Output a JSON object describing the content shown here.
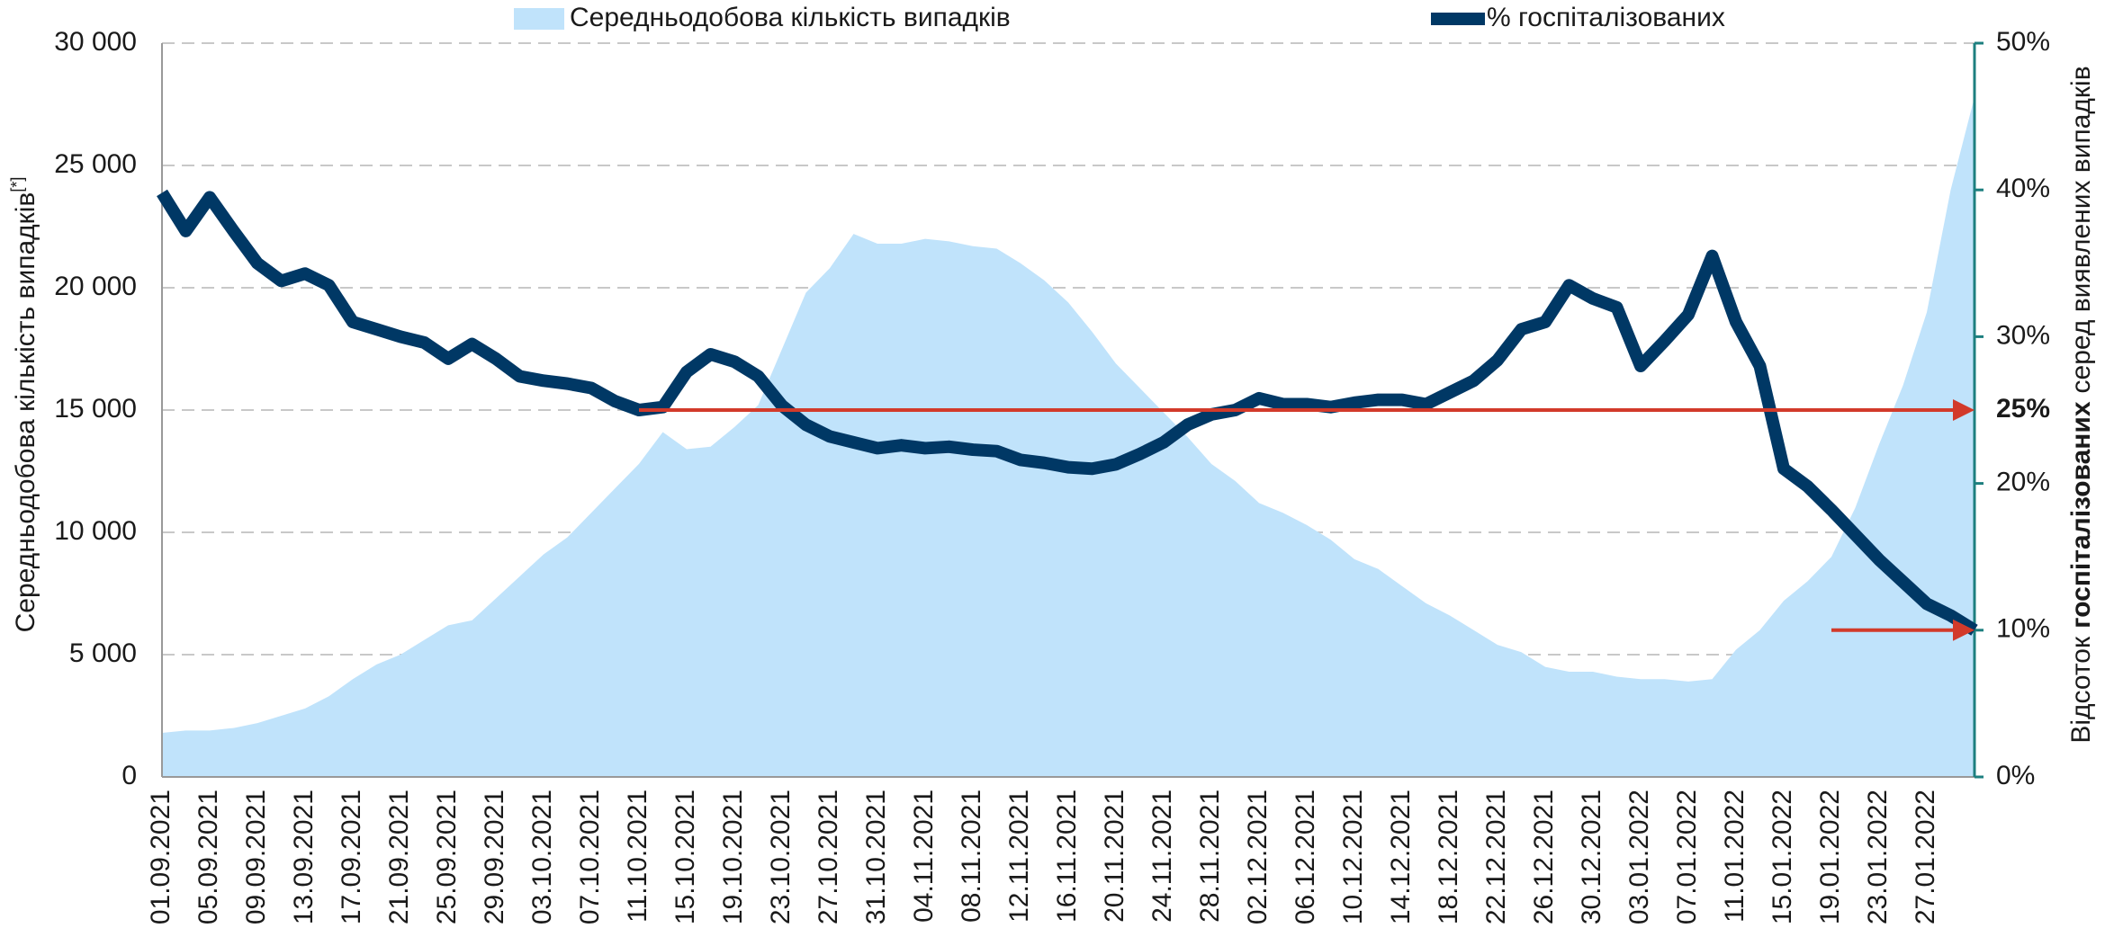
{
  "chart_data": {
    "type": "area_line",
    "categories": [
      "01.09.2021",
      null,
      "05.09.2021",
      null,
      "09.09.2021",
      null,
      "13.09.2021",
      null,
      "17.09.2021",
      null,
      "21.09.2021",
      null,
      "25.09.2021",
      null,
      "29.09.2021",
      null,
      "03.10.2021",
      null,
      "07.10.2021",
      null,
      "11.10.2021",
      null,
      "15.10.2021",
      null,
      "19.10.2021",
      null,
      "23.10.2021",
      null,
      "27.10.2021",
      null,
      "31.10.2021",
      null,
      "04.11.2021",
      null,
      "08.11.2021",
      null,
      "12.11.2021",
      null,
      "16.11.2021",
      null,
      "20.11.2021",
      null,
      "24.11.2021",
      null,
      "28.11.2021",
      null,
      "02.12.2021",
      null,
      "06.12.2021",
      null,
      "10.12.2021",
      null,
      "14.12.2021",
      null,
      "18.12.2021",
      null,
      "22.12.2021",
      null,
      "26.12.2021",
      null,
      "30.12.2021",
      null,
      "03.01.2022",
      null,
      "07.01.2022",
      null,
      "11.01.2022",
      null,
      "15.01.2022",
      null,
      "19.01.2022",
      null,
      "23.01.2022",
      null,
      "27.01.2022",
      null,
      null
    ],
    "series": [
      {
        "name": "Середньодобова кількість випадків",
        "kind": "area",
        "color": "#c0e3fb",
        "values": [
          1800,
          1900,
          1900,
          2000,
          2200,
          2500,
          2800,
          3300,
          4000,
          4600,
          5000,
          5600,
          6200,
          6400,
          7300,
          8200,
          9100,
          9800,
          10800,
          11800,
          12800,
          14100,
          13400,
          13500,
          14300,
          15200,
          17500,
          19800,
          20800,
          22200,
          21800,
          21800,
          22000,
          21900,
          21700,
          21600,
          21000,
          20300,
          19400,
          18200,
          16900,
          15900,
          14900,
          13900,
          12800,
          12100,
          11200,
          10800,
          10300,
          9700,
          8900,
          8500,
          7800,
          7100,
          6600,
          6000,
          5400,
          5100,
          4500,
          4300,
          4300,
          4100,
          4000,
          4000,
          3900,
          4000,
          5200,
          6000,
          7200,
          8000,
          9000,
          11000,
          13600,
          16000,
          19000,
          24000,
          27800
        ]
      },
      {
        "name": "% госпіталізованих",
        "kind": "line",
        "axis": "y2",
        "color": "#003865",
        "values": [
          39.8,
          37.2,
          39.5,
          37.2,
          35.0,
          33.8,
          34.3,
          33.5,
          31.0,
          30.5,
          30.0,
          29.6,
          28.5,
          29.5,
          28.5,
          27.3,
          27.0,
          26.8,
          26.5,
          25.6,
          25.0,
          25.2,
          27.6,
          28.8,
          28.3,
          27.3,
          25.3,
          24.0,
          23.2,
          22.8,
          22.4,
          22.6,
          22.4,
          22.5,
          22.3,
          22.2,
          21.6,
          21.4,
          21.1,
          21.0,
          21.3,
          22.0,
          22.8,
          24.0,
          24.7,
          25.0,
          25.8,
          25.4,
          25.4,
          25.2,
          25.5,
          25.7,
          25.7,
          25.4,
          26.2,
          27.0,
          28.4,
          30.5,
          31.0,
          33.5,
          32.6,
          32.0,
          28.0,
          29.7,
          31.5,
          35.5,
          31.0,
          28.0,
          21.0,
          19.8,
          18.2,
          16.5,
          14.8,
          13.3,
          11.8,
          11.0,
          10.0
        ]
      }
    ],
    "ylabel": "Середньодобова кількість випадків",
    "ylabel_note": "[*]",
    "y2label": [
      "Відсоток",
      "госпіталізованих",
      "серед виявлених випадків"
    ],
    "ylim": [
      0,
      30000
    ],
    "yticks": [
      0,
      {
        "value": 5000,
        "label": "5 000"
      },
      {
        "value": 10000,
        "label": "10 000"
      },
      {
        "value": 15000,
        "label": "15 000"
      },
      {
        "value": 20000,
        "label": "20 000"
      },
      {
        "value": 25000,
        "label": "25 000"
      },
      {
        "value": 30000,
        "label": "30 000"
      }
    ],
    "y2lim": [
      0,
      50
    ],
    "y2ticks": [
      {
        "value": 0,
        "label": "0%"
      },
      {
        "value": 10,
        "label": "10%"
      },
      {
        "value": 20,
        "label": "20%"
      },
      {
        "value": 30,
        "label": "30%"
      },
      {
        "value": 40,
        "label": "40%"
      },
      {
        "value": 50,
        "label": "50%"
      }
    ],
    "grid": true,
    "reference_lines": [
      {
        "value": 25,
        "label": "25%",
        "from": "11.10.2021",
        "color": "#d23a2a"
      },
      {
        "value": 10,
        "from": "19.01.2022",
        "color": "#d23a2a"
      }
    ]
  }
}
